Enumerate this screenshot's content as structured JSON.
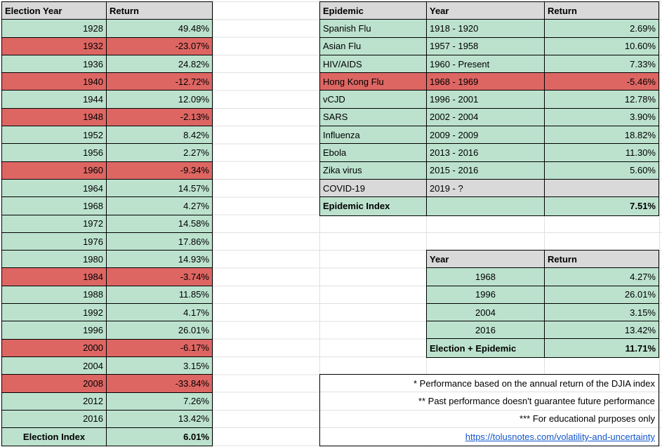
{
  "colors": {
    "positive_green": "#bce2ce",
    "negative_red": "#dd6663",
    "header_gray": "#d9d9d9",
    "grid_line": "#e0e0e0",
    "link_blue": "#1155cc",
    "border_black": "#000000"
  },
  "election_table": {
    "headers": [
      "Election Year",
      "Return"
    ],
    "rows": [
      {
        "year": "1928",
        "return": "49.48%"
      },
      {
        "year": "1932",
        "return": "-23.07%"
      },
      {
        "year": "1936",
        "return": "24.82%"
      },
      {
        "year": "1940",
        "return": "-12.72%"
      },
      {
        "year": "1944",
        "return": "12.09%"
      },
      {
        "year": "1948",
        "return": "-2.13%"
      },
      {
        "year": "1952",
        "return": "8.42%"
      },
      {
        "year": "1956",
        "return": "2.27%"
      },
      {
        "year": "1960",
        "return": "-9.34%"
      },
      {
        "year": "1964",
        "return": "14.57%"
      },
      {
        "year": "1968",
        "return": "4.27%"
      },
      {
        "year": "1972",
        "return": "14.58%"
      },
      {
        "year": "1976",
        "return": "17.86%"
      },
      {
        "year": "1980",
        "return": "14.93%"
      },
      {
        "year": "1984",
        "return": "-3.74%"
      },
      {
        "year": "1988",
        "return": "11.85%"
      },
      {
        "year": "1992",
        "return": "4.17%"
      },
      {
        "year": "1996",
        "return": "26.01%"
      },
      {
        "year": "2000",
        "return": "-6.17%"
      },
      {
        "year": "2004",
        "return": "3.15%"
      },
      {
        "year": "2008",
        "return": "-33.84%"
      },
      {
        "year": "2012",
        "return": "7.26%"
      },
      {
        "year": "2016",
        "return": "13.42%"
      }
    ],
    "footer": {
      "label": "Election Index",
      "return": "6.01%"
    }
  },
  "epidemic_table": {
    "headers": [
      "Epidemic",
      "Year",
      "Return"
    ],
    "rows": [
      {
        "name": "Spanish Flu",
        "years": "1918 - 1920",
        "return": "2.69%"
      },
      {
        "name": "Asian Flu",
        "years": "1957 - 1958",
        "return": "10.60%"
      },
      {
        "name": "HIV/AIDS",
        "years": "1960 - Present",
        "return": "7.33%"
      },
      {
        "name": "Hong Kong Flu",
        "years": "1968 - 1969",
        "return": "-5.46%"
      },
      {
        "name": "vCJD",
        "years": "1996 - 2001",
        "return": "12.78%"
      },
      {
        "name": "SARS",
        "years": "2002 - 2004",
        "return": "3.90%"
      },
      {
        "name": "Influenza",
        "years": "2009 - 2009",
        "return": "18.82%"
      },
      {
        "name": "Ebola",
        "years": "2013 - 2016",
        "return": "11.30%"
      },
      {
        "name": "Zika virus",
        "years": "2015 - 2016",
        "return": "5.60%"
      },
      {
        "name": "COVID-19",
        "years": "2019 - ?",
        "return": ""
      }
    ],
    "footer": {
      "label": "Epidemic Index",
      "years": "",
      "return": "7.51%"
    }
  },
  "combined_table": {
    "headers": [
      "Year",
      "Return"
    ],
    "rows": [
      {
        "year": "1968",
        "return": "4.27%"
      },
      {
        "year": "1996",
        "return": "26.01%"
      },
      {
        "year": "2004",
        "return": "3.15%"
      },
      {
        "year": "2016",
        "return": "13.42%"
      }
    ],
    "footer": {
      "label": "Election + Epidemic",
      "return": "11.71%"
    }
  },
  "notes": {
    "lines": [
      "* Performance based on the annual return of the DJIA index",
      "** Past performance doesn't guarantee future performance",
      "*** For educational purposes only"
    ],
    "link": "https://tolusnotes.com/volatility-and-uncertainty"
  }
}
